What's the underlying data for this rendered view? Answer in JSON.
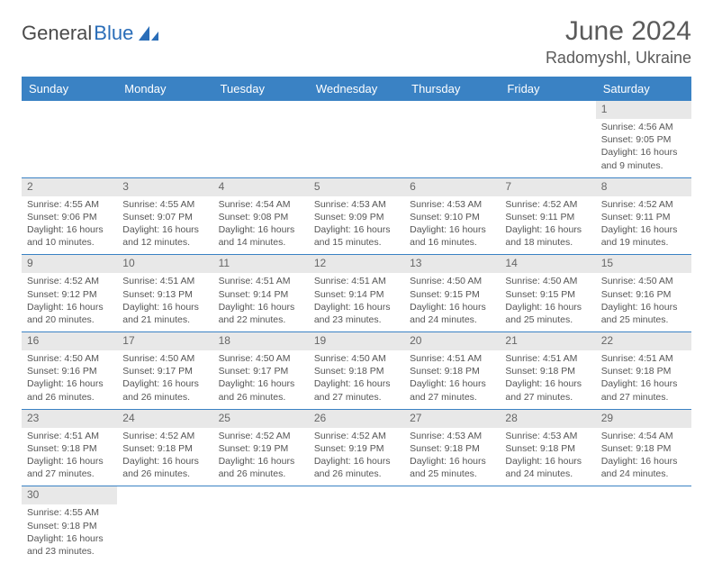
{
  "logo": {
    "dark": "General",
    "blue": "Blue"
  },
  "title": "June 2024",
  "location": "Radomyshl, Ukraine",
  "colors": {
    "header_bg": "#3a82c4",
    "header_text": "#ffffff",
    "numrow_bg": "#e8e8e8",
    "divider": "#3a82c4",
    "text": "#555555",
    "title_text": "#5a5a5a"
  },
  "day_headers": [
    "Sunday",
    "Monday",
    "Tuesday",
    "Wednesday",
    "Thursday",
    "Friday",
    "Saturday"
  ],
  "weeks": [
    {
      "nums": [
        "",
        "",
        "",
        "",
        "",
        "",
        "1"
      ],
      "cells": [
        null,
        null,
        null,
        null,
        null,
        null,
        {
          "sr": "Sunrise: 4:56 AM",
          "ss": "Sunset: 9:05 PM",
          "d1": "Daylight: 16 hours",
          "d2": "and 9 minutes."
        }
      ]
    },
    {
      "nums": [
        "2",
        "3",
        "4",
        "5",
        "6",
        "7",
        "8"
      ],
      "cells": [
        {
          "sr": "Sunrise: 4:55 AM",
          "ss": "Sunset: 9:06 PM",
          "d1": "Daylight: 16 hours",
          "d2": "and 10 minutes."
        },
        {
          "sr": "Sunrise: 4:55 AM",
          "ss": "Sunset: 9:07 PM",
          "d1": "Daylight: 16 hours",
          "d2": "and 12 minutes."
        },
        {
          "sr": "Sunrise: 4:54 AM",
          "ss": "Sunset: 9:08 PM",
          "d1": "Daylight: 16 hours",
          "d2": "and 14 minutes."
        },
        {
          "sr": "Sunrise: 4:53 AM",
          "ss": "Sunset: 9:09 PM",
          "d1": "Daylight: 16 hours",
          "d2": "and 15 minutes."
        },
        {
          "sr": "Sunrise: 4:53 AM",
          "ss": "Sunset: 9:10 PM",
          "d1": "Daylight: 16 hours",
          "d2": "and 16 minutes."
        },
        {
          "sr": "Sunrise: 4:52 AM",
          "ss": "Sunset: 9:11 PM",
          "d1": "Daylight: 16 hours",
          "d2": "and 18 minutes."
        },
        {
          "sr": "Sunrise: 4:52 AM",
          "ss": "Sunset: 9:11 PM",
          "d1": "Daylight: 16 hours",
          "d2": "and 19 minutes."
        }
      ]
    },
    {
      "nums": [
        "9",
        "10",
        "11",
        "12",
        "13",
        "14",
        "15"
      ],
      "cells": [
        {
          "sr": "Sunrise: 4:52 AM",
          "ss": "Sunset: 9:12 PM",
          "d1": "Daylight: 16 hours",
          "d2": "and 20 minutes."
        },
        {
          "sr": "Sunrise: 4:51 AM",
          "ss": "Sunset: 9:13 PM",
          "d1": "Daylight: 16 hours",
          "d2": "and 21 minutes."
        },
        {
          "sr": "Sunrise: 4:51 AM",
          "ss": "Sunset: 9:14 PM",
          "d1": "Daylight: 16 hours",
          "d2": "and 22 minutes."
        },
        {
          "sr": "Sunrise: 4:51 AM",
          "ss": "Sunset: 9:14 PM",
          "d1": "Daylight: 16 hours",
          "d2": "and 23 minutes."
        },
        {
          "sr": "Sunrise: 4:50 AM",
          "ss": "Sunset: 9:15 PM",
          "d1": "Daylight: 16 hours",
          "d2": "and 24 minutes."
        },
        {
          "sr": "Sunrise: 4:50 AM",
          "ss": "Sunset: 9:15 PM",
          "d1": "Daylight: 16 hours",
          "d2": "and 25 minutes."
        },
        {
          "sr": "Sunrise: 4:50 AM",
          "ss": "Sunset: 9:16 PM",
          "d1": "Daylight: 16 hours",
          "d2": "and 25 minutes."
        }
      ]
    },
    {
      "nums": [
        "16",
        "17",
        "18",
        "19",
        "20",
        "21",
        "22"
      ],
      "cells": [
        {
          "sr": "Sunrise: 4:50 AM",
          "ss": "Sunset: 9:16 PM",
          "d1": "Daylight: 16 hours",
          "d2": "and 26 minutes."
        },
        {
          "sr": "Sunrise: 4:50 AM",
          "ss": "Sunset: 9:17 PM",
          "d1": "Daylight: 16 hours",
          "d2": "and 26 minutes."
        },
        {
          "sr": "Sunrise: 4:50 AM",
          "ss": "Sunset: 9:17 PM",
          "d1": "Daylight: 16 hours",
          "d2": "and 26 minutes."
        },
        {
          "sr": "Sunrise: 4:50 AM",
          "ss": "Sunset: 9:18 PM",
          "d1": "Daylight: 16 hours",
          "d2": "and 27 minutes."
        },
        {
          "sr": "Sunrise: 4:51 AM",
          "ss": "Sunset: 9:18 PM",
          "d1": "Daylight: 16 hours",
          "d2": "and 27 minutes."
        },
        {
          "sr": "Sunrise: 4:51 AM",
          "ss": "Sunset: 9:18 PM",
          "d1": "Daylight: 16 hours",
          "d2": "and 27 minutes."
        },
        {
          "sr": "Sunrise: 4:51 AM",
          "ss": "Sunset: 9:18 PM",
          "d1": "Daylight: 16 hours",
          "d2": "and 27 minutes."
        }
      ]
    },
    {
      "nums": [
        "23",
        "24",
        "25",
        "26",
        "27",
        "28",
        "29"
      ],
      "cells": [
        {
          "sr": "Sunrise: 4:51 AM",
          "ss": "Sunset: 9:18 PM",
          "d1": "Daylight: 16 hours",
          "d2": "and 27 minutes."
        },
        {
          "sr": "Sunrise: 4:52 AM",
          "ss": "Sunset: 9:18 PM",
          "d1": "Daylight: 16 hours",
          "d2": "and 26 minutes."
        },
        {
          "sr": "Sunrise: 4:52 AM",
          "ss": "Sunset: 9:19 PM",
          "d1": "Daylight: 16 hours",
          "d2": "and 26 minutes."
        },
        {
          "sr": "Sunrise: 4:52 AM",
          "ss": "Sunset: 9:19 PM",
          "d1": "Daylight: 16 hours",
          "d2": "and 26 minutes."
        },
        {
          "sr": "Sunrise: 4:53 AM",
          "ss": "Sunset: 9:18 PM",
          "d1": "Daylight: 16 hours",
          "d2": "and 25 minutes."
        },
        {
          "sr": "Sunrise: 4:53 AM",
          "ss": "Sunset: 9:18 PM",
          "d1": "Daylight: 16 hours",
          "d2": "and 24 minutes."
        },
        {
          "sr": "Sunrise: 4:54 AM",
          "ss": "Sunset: 9:18 PM",
          "d1": "Daylight: 16 hours",
          "d2": "and 24 minutes."
        }
      ]
    },
    {
      "nums": [
        "30",
        "",
        "",
        "",
        "",
        "",
        ""
      ],
      "cells": [
        {
          "sr": "Sunrise: 4:55 AM",
          "ss": "Sunset: 9:18 PM",
          "d1": "Daylight: 16 hours",
          "d2": "and 23 minutes."
        },
        null,
        null,
        null,
        null,
        null,
        null
      ]
    }
  ]
}
